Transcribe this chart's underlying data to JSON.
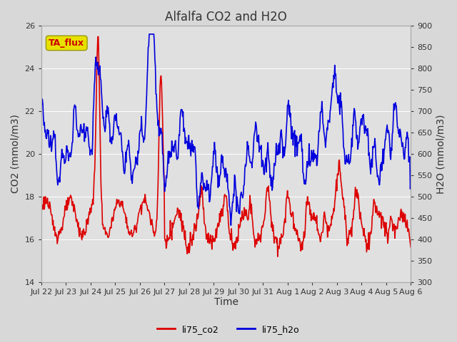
{
  "title": "Alfalfa CO2 and H2O",
  "xlabel": "Time",
  "ylabel_left": "CO2 (mmol/m3)",
  "ylabel_right": "H2O (mmol/m3)",
  "ylim_left": [
    14,
    26
  ],
  "ylim_right": [
    300,
    900
  ],
  "yticks_left": [
    14,
    16,
    18,
    20,
    22,
    24,
    26
  ],
  "yticks_right": [
    300,
    350,
    400,
    450,
    500,
    550,
    600,
    650,
    700,
    750,
    800,
    850,
    900
  ],
  "xtick_labels": [
    "Jul 22",
    "Jul 23",
    "Jul 24",
    "Jul 25",
    "Jul 26",
    "Jul 27",
    "Jul 28",
    "Jul 29",
    "Jul 30",
    "Jul 31",
    "Aug 1",
    "Aug 2",
    "Aug 3",
    "Aug 4",
    "Aug 5",
    "Aug 6"
  ],
  "color_co2": "#dd0000",
  "color_h2o": "#0000dd",
  "annotation_text": "TA_flux",
  "annotation_fg": "#cc0000",
  "annotation_bg": "#e8e000",
  "annotation_edge": "#999900",
  "legend_labels": [
    "li75_co2",
    "li75_h2o"
  ],
  "fig_bg": "#d8d8d8",
  "plot_bg": "#d8d8d8",
  "inner_bg": "#e0e0e0",
  "title_fontsize": 12,
  "axis_label_fontsize": 10,
  "tick_fontsize": 8,
  "linewidth": 1.2
}
